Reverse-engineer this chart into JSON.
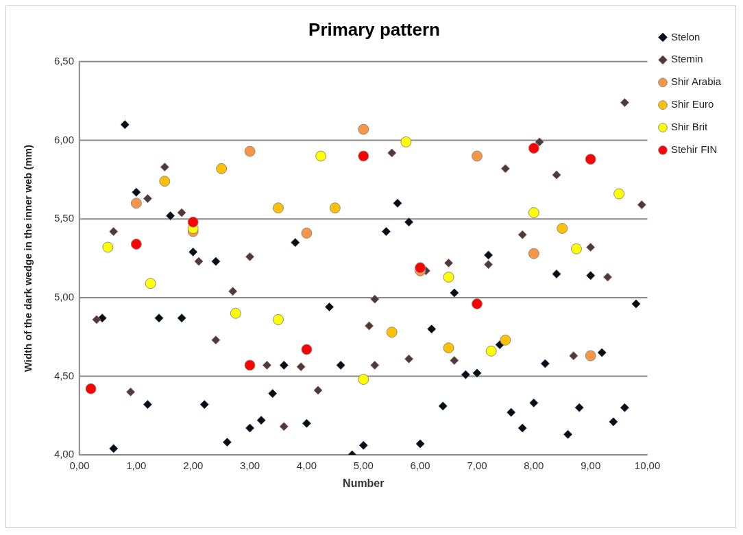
{
  "chart_data": {
    "type": "scatter",
    "title": "Primary pattern",
    "xlabel": "Number",
    "ylabel": "Width of the dark wedge in the inner web (mm)",
    "xlim": [
      0,
      10
    ],
    "ylim": [
      4,
      6.5
    ],
    "xticks": [
      {
        "value": 0,
        "label": "0,00"
      },
      {
        "value": 1,
        "label": "1,00"
      },
      {
        "value": 2,
        "label": "2,00"
      },
      {
        "value": 3,
        "label": "3,00"
      },
      {
        "value": 4,
        "label": "4,00"
      },
      {
        "value": 5,
        "label": "5,00"
      },
      {
        "value": 6,
        "label": "6,00"
      },
      {
        "value": 7,
        "label": "7,00"
      },
      {
        "value": 8,
        "label": "8,00"
      },
      {
        "value": 9,
        "label": "9,00"
      },
      {
        "value": 10,
        "label": "10,00"
      }
    ],
    "yticks": [
      {
        "value": 4,
        "label": "4,00"
      },
      {
        "value": 4.5,
        "label": "4,50"
      },
      {
        "value": 5,
        "label": "5,00"
      },
      {
        "value": 5.5,
        "label": "5,50"
      },
      {
        "value": 6,
        "label": "6,00"
      },
      {
        "value": 6.5,
        "label": "6,50"
      }
    ],
    "grid": "y",
    "legend": "right",
    "series": [
      {
        "name": "Stelon",
        "color": "#0d0d0d",
        "marker": "diamond",
        "x": [
          0.4,
          0.6,
          0.8,
          1.0,
          1.2,
          1.4,
          1.6,
          1.8,
          2.0,
          2.2,
          2.4,
          2.6,
          3.0,
          3.2,
          3.4,
          3.6,
          3.8,
          4.0,
          4.4,
          4.6,
          4.8,
          5.0,
          5.4,
          5.6,
          5.8,
          6.0,
          6.2,
          6.4,
          6.6,
          6.8,
          7.0,
          7.2,
          7.4,
          7.6,
          7.8,
          8.0,
          8.2,
          8.4,
          8.6,
          8.8,
          9.0,
          9.2,
          9.4,
          9.6,
          9.8
        ],
        "values": [
          4.87,
          4.04,
          6.1,
          5.67,
          4.32,
          4.87,
          5.52,
          4.87,
          5.29,
          4.32,
          5.23,
          4.08,
          4.17,
          4.22,
          4.39,
          4.57,
          5.35,
          4.2,
          4.94,
          4.57,
          4.0,
          4.06,
          5.42,
          5.6,
          5.48,
          4.07,
          4.8,
          4.31,
          5.03,
          4.51,
          4.52,
          5.27,
          4.7,
          4.27,
          4.17,
          4.33,
          4.58,
          5.15,
          4.13,
          4.3,
          5.14,
          4.65,
          4.21,
          4.3,
          4.96
        ]
      },
      {
        "name": "Stemin",
        "color": "#404040",
        "marker": "diamond",
        "x": [
          0.3,
          0.6,
          0.9,
          1.2,
          1.5,
          1.8,
          2.1,
          2.4,
          2.7,
          3.0,
          3.3,
          3.6,
          3.9,
          4.2,
          5.1,
          5.2,
          5.2,
          5.5,
          5.8,
          6.1,
          6.5,
          6.6,
          7.2,
          7.5,
          7.8,
          8.1,
          8.4,
          8.7,
          9.0,
          9.3,
          9.6,
          9.9
        ],
        "values": [
          4.86,
          5.42,
          4.4,
          5.63,
          5.83,
          5.54,
          5.23,
          4.73,
          5.04,
          5.26,
          4.57,
          4.18,
          4.56,
          4.41,
          4.82,
          4.99,
          4.57,
          5.92,
          4.61,
          5.17,
          5.22,
          4.6,
          5.21,
          5.82,
          5.4,
          5.99,
          5.78,
          4.63,
          5.32,
          5.13,
          6.24,
          5.59
        ]
      },
      {
        "name": "Shir Arabia",
        "color": "#f79646",
        "marker": "circle",
        "x": [
          1,
          2,
          3,
          4,
          5,
          6,
          7,
          8,
          9
        ],
        "values": [
          5.6,
          5.42,
          5.93,
          5.41,
          6.07,
          5.17,
          5.9,
          5.28,
          4.63
        ]
      },
      {
        "name": "Shir Euro",
        "color": "#ffc000",
        "marker": "circle",
        "x": [
          1.5,
          2.5,
          3.5,
          4.5,
          5.5,
          6.5,
          7.5,
          8.5
        ],
        "values": [
          5.74,
          5.82,
          5.57,
          5.57,
          4.78,
          4.68,
          4.73,
          5.44
        ]
      },
      {
        "name": "Shir Brit",
        "color": "#ffff00",
        "marker": "circle",
        "x": [
          0.5,
          1.25,
          2.0,
          2.75,
          3.5,
          4.25,
          5.0,
          5.75,
          6.5,
          7.25,
          8.0,
          8.75,
          9.5
        ],
        "values": [
          5.32,
          5.09,
          5.44,
          4.9,
          4.86,
          5.9,
          4.48,
          5.99,
          5.13,
          4.66,
          5.54,
          5.31,
          5.66
        ]
      },
      {
        "name": "Stehir FIN",
        "color": "#ff0000",
        "marker": "circle",
        "x": [
          0.2,
          1,
          2,
          3,
          4,
          5,
          6,
          7,
          8,
          9
        ],
        "values": [
          4.42,
          5.34,
          5.48,
          4.57,
          4.67,
          5.9,
          5.19,
          4.96,
          5.95,
          5.88
        ]
      }
    ]
  }
}
